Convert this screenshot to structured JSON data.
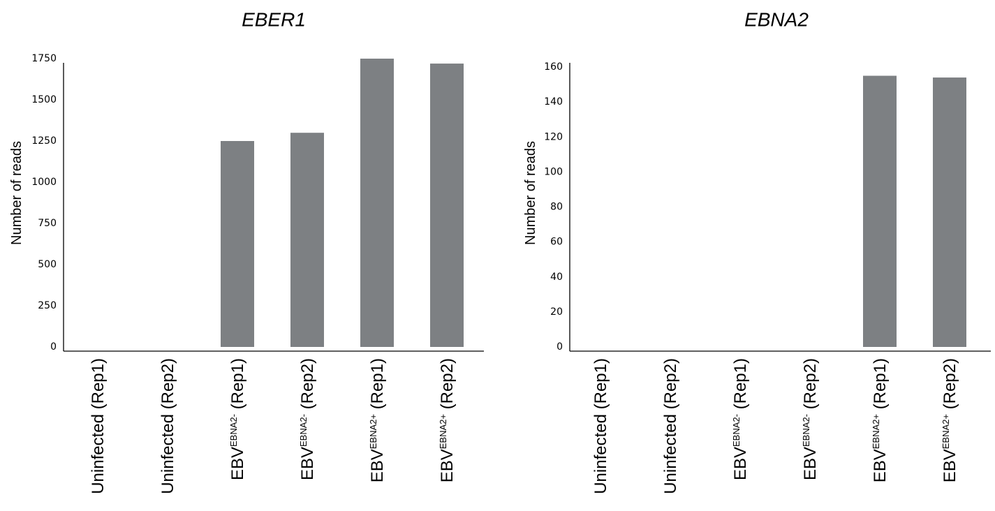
{
  "chart_data": [
    {
      "type": "bar",
      "title": "EBER1",
      "ylabel": "Number of reads",
      "xlabel": "",
      "ylim": [
        0,
        1800
      ],
      "yticks": [
        0,
        250,
        500,
        750,
        1000,
        1250,
        1500,
        1750
      ],
      "categories": [
        {
          "main": "Uninfected",
          "sup": "",
          "rep": "(Rep1)"
        },
        {
          "main": "Uninfected",
          "sup": "",
          "rep": "(Rep2)"
        },
        {
          "main": "EBV",
          "sup": "EBNA2-",
          "rep": "(Rep1)"
        },
        {
          "main": "EBV",
          "sup": "EBNA2-",
          "rep": "(Rep2)"
        },
        {
          "main": "EBV",
          "sup": "EBNA2+",
          "rep": "(Rep1)"
        },
        {
          "main": "EBV",
          "sup": "EBNA2+",
          "rep": "(Rep2)"
        }
      ],
      "values": [
        0,
        0,
        1250,
        1300,
        1750,
        1720
      ],
      "bar_color": "#7d8083"
    },
    {
      "type": "bar",
      "title": "EBNA2",
      "ylabel": "Number of reads",
      "xlabel": "",
      "ylim": [
        0,
        160
      ],
      "yticks": [
        0,
        20,
        40,
        60,
        80,
        100,
        120,
        140,
        160
      ],
      "categories": [
        {
          "main": "Uninfected",
          "sup": "",
          "rep": "(Rep1)"
        },
        {
          "main": "Uninfected",
          "sup": "",
          "rep": "(Rep2)"
        },
        {
          "main": "EBV",
          "sup": "EBNA2-",
          "rep": "(Rep1)"
        },
        {
          "main": "EBV",
          "sup": "EBNA2-",
          "rep": "(Rep2)"
        },
        {
          "main": "EBV",
          "sup": "EBNA2+",
          "rep": "(Rep1)"
        },
        {
          "main": "EBV",
          "sup": "EBNA2+",
          "rep": "(Rep2)"
        }
      ],
      "values": [
        0,
        0,
        0,
        0,
        155,
        154
      ],
      "bar_color": "#7d8083"
    }
  ]
}
